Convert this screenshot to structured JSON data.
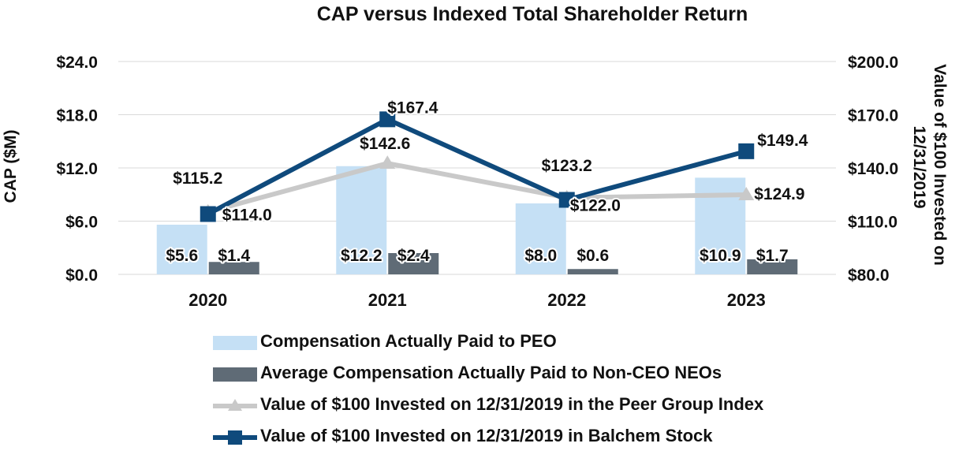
{
  "chart_data": {
    "type": "bar",
    "title": "CAP versus Indexed Total Shareholder Return",
    "categories": [
      "2020",
      "2021",
      "2022",
      "2023"
    ],
    "ylabel": "CAP ($M)",
    "y2label_lines": [
      "Value of $100 Invested on",
      "12/31/2019"
    ],
    "ylim": [
      0,
      24
    ],
    "y2lim": [
      80,
      200
    ],
    "y_ticks": [
      0,
      6,
      12,
      18,
      24
    ],
    "y_tick_labels": [
      "$0.0",
      "$6.0",
      "$12.0",
      "$18.0",
      "$24.0"
    ],
    "y2_ticks": [
      80,
      110,
      140,
      170,
      200
    ],
    "y2_tick_labels": [
      "$80.0",
      "$110.0",
      "$140.0",
      "$170.0",
      "$200.0"
    ],
    "grid": true,
    "series": [
      {
        "name": "Compensation Actually Paid to PEO",
        "kind": "bar",
        "axis": "left",
        "color": "#C5E0F5",
        "values": [
          5.6,
          12.2,
          8.0,
          10.9
        ],
        "labels": [
          "$5.6",
          "$12.2",
          "$8.0",
          "$10.9"
        ]
      },
      {
        "name": "Average Compensation Actually Paid to Non-CEO NEOs",
        "kind": "bar",
        "axis": "left",
        "color": "#5F6B76",
        "values": [
          1.4,
          2.4,
          0.6,
          1.7
        ],
        "labels": [
          "$1.4",
          "$2.4",
          "$0.6",
          "$1.7"
        ]
      },
      {
        "name": "Value of $100 Invested on 12/31/2019 in the Peer Group Index",
        "kind": "line",
        "marker": "triangle",
        "axis": "right",
        "color": "#C9C9C9",
        "values": [
          115.2,
          142.6,
          123.2,
          124.9
        ],
        "labels": [
          "$115.2",
          "$142.6",
          "$123.2",
          "$124.9"
        ]
      },
      {
        "name": "Value of $100 Invested on 12/31/2019 in Balchem Stock",
        "kind": "line",
        "marker": "square",
        "axis": "right",
        "color": "#0F4A7C",
        "values": [
          114.0,
          167.4,
          122.0,
          149.4
        ],
        "labels": [
          "$114.0",
          "$167.4",
          "$122.0",
          "$149.4"
        ]
      }
    ]
  }
}
